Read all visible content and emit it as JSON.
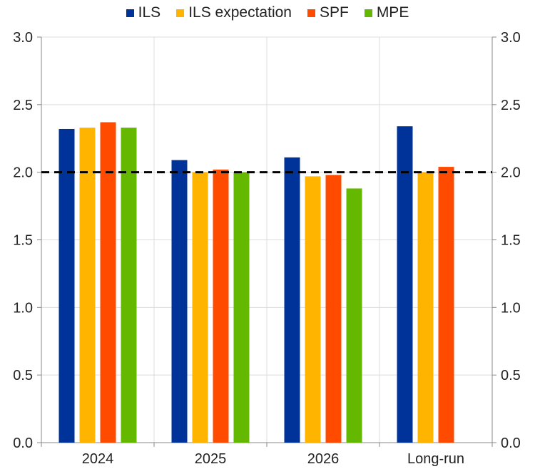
{
  "chart_data": {
    "type": "bar",
    "categories": [
      "2024",
      "2025",
      "2026",
      "Long-run"
    ],
    "series": [
      {
        "name": "ILS",
        "color": "#003399",
        "values": [
          2.32,
          2.09,
          2.11,
          2.34
        ]
      },
      {
        "name": "ILS expectation",
        "color": "#FFB400",
        "values": [
          2.33,
          2.0,
          1.97,
          2.0
        ]
      },
      {
        "name": "SPF",
        "color": "#FF4B00",
        "values": [
          2.37,
          2.02,
          1.98,
          2.04
        ]
      },
      {
        "name": "MPE",
        "color": "#65B800",
        "values": [
          2.33,
          2.0,
          1.88,
          null
        ]
      }
    ],
    "ylim": [
      0,
      3.0
    ],
    "yticks": [
      "0.0",
      "0.5",
      "1.0",
      "1.5",
      "2.0",
      "2.5",
      "3.0"
    ],
    "reference_line": {
      "value": 2.0,
      "style": "dashed",
      "color": "#000000"
    },
    "grid": true,
    "legend_position": "top"
  }
}
